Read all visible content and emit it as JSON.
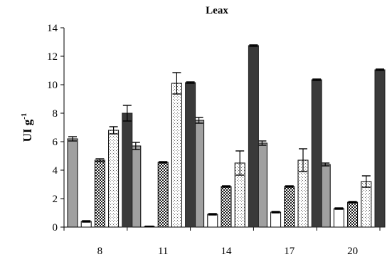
{
  "chart_data": {
    "type": "bar",
    "title": "Leax",
    "ylabel": "UI g",
    "ylabel_superscript": "-1",
    "xlabel": "",
    "categories": [
      "8",
      "11",
      "14",
      "17",
      "20"
    ],
    "ylim": [
      0,
      14
    ],
    "yticks": [
      0,
      2,
      4,
      6,
      8,
      10,
      12,
      14
    ],
    "grid": false,
    "legend": "none",
    "series": [
      {
        "values": [
          6.2,
          5.7,
          7.5,
          5.9,
          4.4
        ],
        "errors": [
          0.15,
          0.25,
          0.2,
          0.15,
          0.1
        ],
        "style": "gray"
      },
      {
        "values": [
          0.4,
          0.05,
          0.9,
          1.05,
          1.3
        ],
        "errors": [
          0.05,
          0.02,
          0.05,
          0.05,
          0.05
        ],
        "style": "white"
      },
      {
        "values": [
          4.7,
          4.55,
          2.85,
          2.85,
          1.75
        ],
        "errors": [
          0.1,
          0.05,
          0.05,
          0.05,
          0.05
        ],
        "style": "checker"
      },
      {
        "values": [
          6.8,
          10.1,
          4.5,
          4.7,
          3.2
        ],
        "errors": [
          0.25,
          0.75,
          0.85,
          0.8,
          0.4
        ],
        "style": "dotted"
      },
      {
        "values": [
          8.0,
          10.15,
          12.75,
          10.35,
          11.05
        ],
        "errors": [
          0.55,
          0.05,
          0.05,
          0.05,
          0.05
        ],
        "style": "dark"
      }
    ],
    "colors": {
      "gray": "#a0a0a0",
      "white": "#ffffff",
      "checker_dark": "#1a1a1a",
      "checker_light": "#ffffff",
      "dotted_bg": "#ffffff",
      "dotted_fg": "#666666",
      "dark": "#3a3a3a",
      "axis": "#000000"
    }
  }
}
